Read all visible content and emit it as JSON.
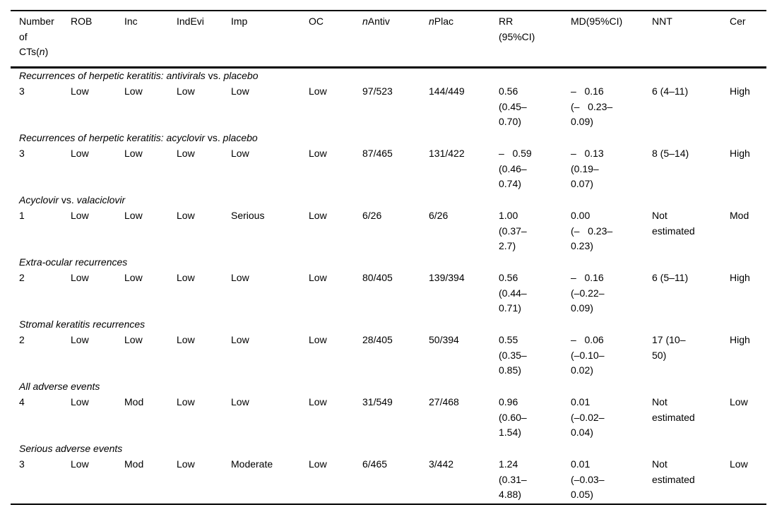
{
  "table": {
    "headers": [
      "Number\nof\nCTs(*n*)",
      "ROB",
      "Inc",
      "IndEvi",
      "Imp",
      "OC",
      "*n*Antiv",
      "*n*Plac",
      "RR\n(95%CI)",
      "MD(95%CI)",
      "NNT",
      "Cer"
    ],
    "sections": [
      {
        "title": "Recurrences of herpetic keratitis: antivirals *vs.* placebo",
        "cells": [
          "3",
          "Low",
          "Low",
          "Low",
          "Low",
          "Low",
          "97/523",
          "144/449",
          "0.56\n(0.45–\n0.70)",
          "–   0.16\n(–   0.23–\n0.09)",
          "6 (4–11)",
          "High"
        ]
      },
      {
        "title": "Recurrences of herpetic keratitis: acyclovir *vs.* placebo",
        "cells": [
          "3",
          "Low",
          "Low",
          "Low",
          "Low",
          "Low",
          "87/465",
          "131/422",
          "–   0.59\n(0.46–\n0.74)",
          "–   0.13\n(0.19–\n0.07)",
          "8 (5–14)",
          "High"
        ]
      },
      {
        "title": "Acyclovir *vs.* valaciclovir",
        "cells": [
          "1",
          "Low",
          "Low",
          "Low",
          "Serious",
          "Low",
          "6/26",
          "6/26",
          "1.00\n(0.37–\n2.7)",
          "0.00\n(–   0.23–\n0.23)",
          "Not\nestimated",
          "Mod"
        ]
      },
      {
        "title": "Extra-ocular recurrences",
        "cells": [
          "2",
          "Low",
          "Low",
          "Low",
          "Low",
          "Low",
          "80/405",
          "139/394",
          "0.56\n(0.44–\n0.71)",
          "–   0.16\n(–0.22–\n0.09)",
          "6 (5–11)",
          "High"
        ]
      },
      {
        "title": "Stromal keratitis recurrences",
        "cells": [
          "2",
          "Low",
          "Low",
          "Low",
          "Low",
          "Low",
          "28/405",
          "50/394",
          "0.55\n(0.35–\n0.85)",
          "–   0.06\n(–0.10–\n0.02)",
          "17 (10–\n50)",
          "High"
        ]
      },
      {
        "title": "All adverse events",
        "cells": [
          "4",
          "Low",
          "Mod",
          "Low",
          "Low",
          "Low",
          "31/549",
          "27/468",
          "0.96\n(0.60–\n1.54)",
          "0.01\n(–0.02–\n0.04)",
          "Not\nestimated",
          "Low"
        ]
      },
      {
        "title": "Serious adverse events",
        "cells": [
          "3",
          "Low",
          "Mod",
          "Low",
          "Moderate",
          "Low",
          "6/465",
          "3/442",
          "1.24\n(0.31–\n4.88)",
          "0.01\n(–0.03–\n0.05)",
          "Not\nestimated",
          "Low"
        ]
      }
    ]
  }
}
